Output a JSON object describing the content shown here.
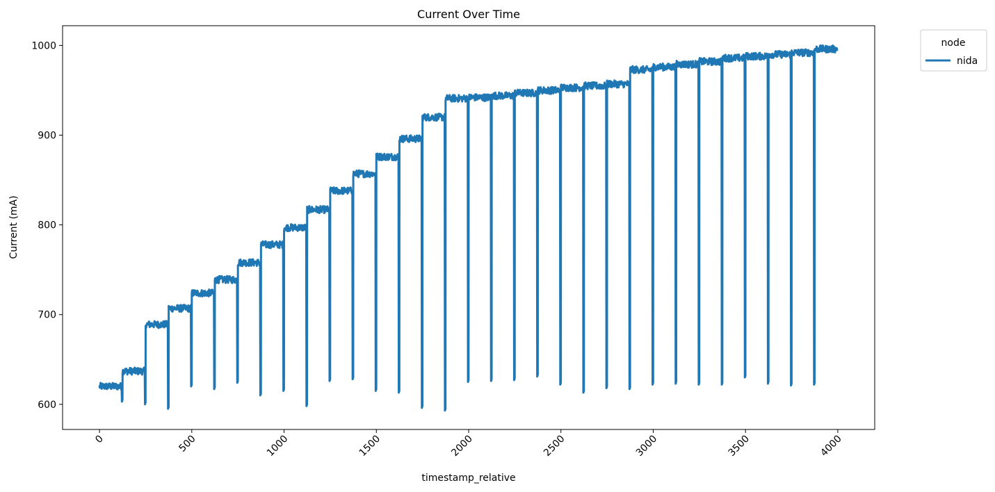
{
  "chart_data": {
    "type": "line",
    "title": "Current Over Time",
    "xlabel": "timestamp_relative",
    "ylabel": "Current (mA)",
    "xlim": [
      -200,
      4200
    ],
    "ylim": [
      572,
      1022
    ],
    "xticks": [
      0,
      500,
      1000,
      1500,
      2000,
      2500,
      3000,
      3500,
      4000
    ],
    "yticks": [
      600,
      700,
      800,
      900,
      1000
    ],
    "grid": false,
    "legend": {
      "title": "node",
      "placement": "upper right, outside plot"
    },
    "series": [
      {
        "name": "nida",
        "color": "#1f77b4",
        "steps": [
          {
            "start": 0,
            "end": 120,
            "level": 620,
            "dip": 603
          },
          {
            "start": 125,
            "end": 245,
            "level": 637,
            "dip": 600
          },
          {
            "start": 250,
            "end": 370,
            "level": 689,
            "dip": 595
          },
          {
            "start": 375,
            "end": 495,
            "level": 707,
            "dip": 620
          },
          {
            "start": 500,
            "end": 620,
            "level": 724,
            "dip": 617
          },
          {
            "start": 625,
            "end": 745,
            "level": 739,
            "dip": 624
          },
          {
            "start": 750,
            "end": 870,
            "level": 758,
            "dip": 610
          },
          {
            "start": 875,
            "end": 995,
            "level": 778,
            "dip": 615
          },
          {
            "start": 1000,
            "end": 1120,
            "level": 797,
            "dip": 598
          },
          {
            "start": 1125,
            "end": 1245,
            "level": 817,
            "dip": 626
          },
          {
            "start": 1250,
            "end": 1370,
            "level": 838,
            "dip": 628
          },
          {
            "start": 1375,
            "end": 1495,
            "level": 857,
            "dip": 615
          },
          {
            "start": 1500,
            "end": 1620,
            "level": 876,
            "dip": 613
          },
          {
            "start": 1625,
            "end": 1745,
            "level": 896,
            "dip": 596
          },
          {
            "start": 1750,
            "end": 1870,
            "level": 920,
            "dip": 593
          },
          {
            "start": 1875,
            "end": 1995,
            "level": 941,
            "dip": 625
          },
          {
            "start": 2000,
            "end": 2120,
            "level": 942,
            "dip": 626
          },
          {
            "start": 2125,
            "end": 2245,
            "level": 944,
            "dip": 627
          },
          {
            "start": 2250,
            "end": 2370,
            "level": 947,
            "dip": 631
          },
          {
            "start": 2375,
            "end": 2495,
            "level": 950,
            "dip": 622
          },
          {
            "start": 2500,
            "end": 2620,
            "level": 953,
            "dip": 613
          },
          {
            "start": 2625,
            "end": 2745,
            "level": 955,
            "dip": 618
          },
          {
            "start": 2750,
            "end": 2870,
            "level": 957,
            "dip": 617
          },
          {
            "start": 2875,
            "end": 2995,
            "level": 973,
            "dip": 622
          },
          {
            "start": 3000,
            "end": 3120,
            "level": 976,
            "dip": 623
          },
          {
            "start": 3125,
            "end": 3245,
            "level": 979,
            "dip": 622
          },
          {
            "start": 3250,
            "end": 3370,
            "level": 982,
            "dip": 622
          },
          {
            "start": 3375,
            "end": 3495,
            "level": 986,
            "dip": 630
          },
          {
            "start": 3500,
            "end": 3620,
            "level": 988,
            "dip": 623
          },
          {
            "start": 3625,
            "end": 3745,
            "level": 990,
            "dip": 621
          },
          {
            "start": 3750,
            "end": 3870,
            "level": 992,
            "dip": 622
          },
          {
            "start": 3875,
            "end": 3995,
            "level": 996,
            "dip": 609
          }
        ]
      }
    ]
  }
}
